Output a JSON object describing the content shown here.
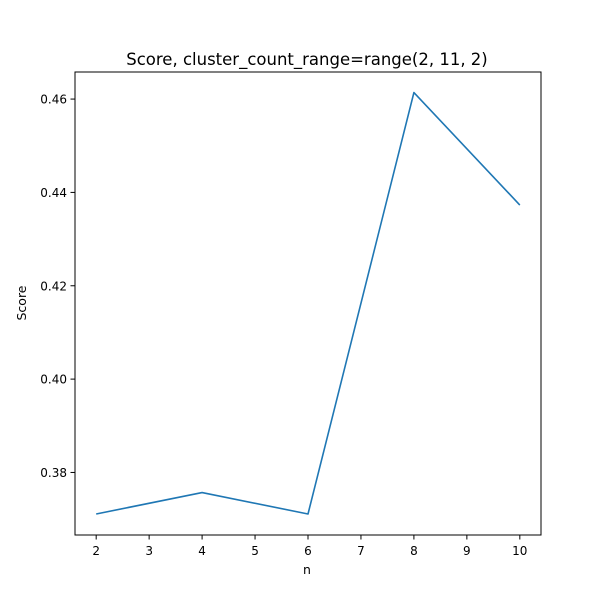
{
  "chart_data": {
    "type": "line",
    "title": "Score, cluster_count_range=range(2, 11, 2)",
    "xlabel": "n",
    "ylabel": "Score",
    "xlim": [
      1.6,
      10.4
    ],
    "ylim": [
      0.3666,
      0.4658
    ],
    "xticks": [
      2,
      3,
      4,
      5,
      6,
      7,
      8,
      9,
      10
    ],
    "yticks": [
      0.38,
      0.4,
      0.42,
      0.44,
      0.46
    ],
    "ytick_labels": [
      "0.38",
      "0.40",
      "0.42",
      "0.44",
      "0.46"
    ],
    "grid": false,
    "series": [
      {
        "color": "#1f77b4",
        "x": [
          2,
          4,
          6,
          8,
          10
        ],
        "y": [
          0.3711,
          0.3757,
          0.3711,
          0.4614,
          0.4373
        ]
      }
    ]
  }
}
